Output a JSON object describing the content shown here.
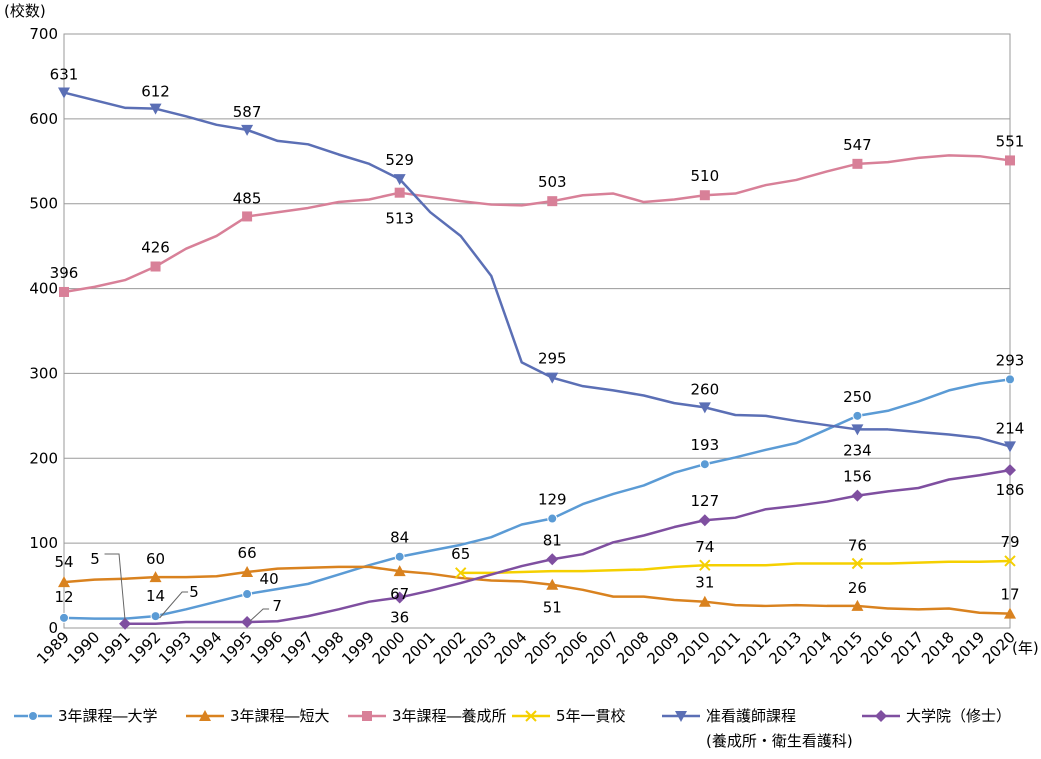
{
  "chart_data": {
    "type": "line",
    "ylabel": "(校数)",
    "xlabel_unit": "(年)",
    "ylim": [
      0,
      700
    ],
    "yticks": [
      0,
      100,
      200,
      300,
      400,
      500,
      600,
      700
    ],
    "grid": "horizontal",
    "legend_position": "bottom",
    "categories": [
      "1989",
      "1990",
      "1991",
      "1992",
      "1993",
      "1994",
      "1995",
      "1996",
      "1997",
      "1998",
      "1999",
      "2000",
      "2001",
      "2002",
      "2003",
      "2004",
      "2005",
      "2006",
      "2007",
      "2008",
      "2009",
      "2010",
      "2011",
      "2012",
      "2013",
      "2014",
      "2015",
      "2016",
      "2017",
      "2018",
      "2019",
      "2020"
    ],
    "series": [
      {
        "name": "3年課程―大学",
        "color": "#5B9BD5",
        "marker": "circle",
        "values": [
          12,
          11,
          11,
          14,
          22,
          31,
          40,
          46,
          52,
          63,
          74,
          84,
          91,
          98,
          107,
          122,
          129,
          146,
          158,
          168,
          183,
          193,
          201,
          210,
          218,
          234,
          250,
          256,
          267,
          280,
          288,
          293
        ],
        "labels": [
          {
            "i": 0,
            "text": "12"
          },
          {
            "i": 3,
            "text": "14"
          },
          {
            "i": 6,
            "text": "40"
          },
          {
            "i": 11,
            "text": "84"
          },
          {
            "i": 16,
            "text": "129"
          },
          {
            "i": 21,
            "text": "193"
          },
          {
            "i": 26,
            "text": "250"
          },
          {
            "i": 31,
            "text": "293"
          }
        ]
      },
      {
        "name": "3年課程―短大",
        "color": "#D9821F",
        "marker": "triangle",
        "values": [
          54,
          57,
          58,
          60,
          60,
          61,
          66,
          70,
          71,
          72,
          72,
          67,
          64,
          59,
          56,
          55,
          51,
          45,
          37,
          37,
          33,
          31,
          27,
          26,
          27,
          26,
          26,
          23,
          22,
          23,
          18,
          17
        ],
        "labels": [
          {
            "i": 0,
            "text": "54"
          },
          {
            "i": 3,
            "text": "60"
          },
          {
            "i": 6,
            "text": "66"
          },
          {
            "i": 11,
            "text": "67"
          },
          {
            "i": 16,
            "text": "51"
          },
          {
            "i": 21,
            "text": "31"
          },
          {
            "i": 26,
            "text": "26"
          },
          {
            "i": 31,
            "text": "17"
          }
        ]
      },
      {
        "name": "3年課程―養成所",
        "color": "#D88098",
        "marker": "square",
        "values": [
          396,
          402,
          410,
          426,
          447,
          462,
          485,
          490,
          495,
          502,
          505,
          513,
          508,
          503,
          499,
          498,
          503,
          510,
          512,
          502,
          505,
          510,
          512,
          522,
          528,
          538,
          547,
          549,
          554,
          557,
          556,
          551
        ],
        "labels": [
          {
            "i": 0,
            "text": "396"
          },
          {
            "i": 3,
            "text": "426"
          },
          {
            "i": 6,
            "text": "485"
          },
          {
            "i": 11,
            "text": "513"
          },
          {
            "i": 16,
            "text": "503"
          },
          {
            "i": 21,
            "text": "510"
          },
          {
            "i": 26,
            "text": "547"
          },
          {
            "i": 31,
            "text": "551"
          }
        ]
      },
      {
        "name": "5年一貫校",
        "color": "#F5D000",
        "marker": "x",
        "start_index": 13,
        "values": [
          null,
          null,
          null,
          null,
          null,
          null,
          null,
          null,
          null,
          null,
          null,
          null,
          null,
          65,
          65,
          66,
          67,
          67,
          68,
          69,
          72,
          74,
          74,
          74,
          76,
          76,
          76,
          76,
          77,
          78,
          78,
          79
        ],
        "labels": [
          {
            "i": 13,
            "text": "65"
          },
          {
            "i": 21,
            "text": "74"
          },
          {
            "i": 26,
            "text": "76"
          },
          {
            "i": 31,
            "text": "79"
          }
        ]
      },
      {
        "name": "准看護師課程",
        "name_line2": "(養成所・衛生看護科)",
        "color": "#5B6FB5",
        "marker": "triangle-down",
        "values": [
          631,
          622,
          613,
          612,
          603,
          593,
          587,
          574,
          570,
          558,
          547,
          529,
          490,
          462,
          415,
          313,
          295,
          285,
          280,
          274,
          265,
          260,
          251,
          250,
          244,
          239,
          234,
          234,
          231,
          228,
          224,
          214
        ],
        "labels": [
          {
            "i": 0,
            "text": "631"
          },
          {
            "i": 3,
            "text": "612"
          },
          {
            "i": 6,
            "text": "587"
          },
          {
            "i": 11,
            "text": "529"
          },
          {
            "i": 16,
            "text": "295"
          },
          {
            "i": 21,
            "text": "260"
          },
          {
            "i": 26,
            "text": "234"
          },
          {
            "i": 31,
            "text": "214"
          }
        ]
      },
      {
        "name": "大学院（修士）",
        "color": "#7F4FA0",
        "marker": "diamond",
        "start_index": 2,
        "values": [
          null,
          null,
          5,
          5,
          7,
          7,
          7,
          8,
          14,
          22,
          31,
          36,
          44,
          53,
          63,
          73,
          81,
          87,
          101,
          109,
          119,
          127,
          130,
          140,
          144,
          149,
          156,
          161,
          165,
          175,
          180,
          186
        ],
        "labels": [
          {
            "i": 2,
            "text": "5"
          },
          {
            "i": 6,
            "text": "7"
          },
          {
            "i": 11,
            "text": "36"
          },
          {
            "i": 16,
            "text": "81"
          },
          {
            "i": 21,
            "text": "127"
          },
          {
            "i": 26,
            "text": "156"
          },
          {
            "i": 31,
            "text": "186"
          }
        ]
      }
    ],
    "callout_labels": [
      "5",
      "5",
      "7"
    ]
  }
}
